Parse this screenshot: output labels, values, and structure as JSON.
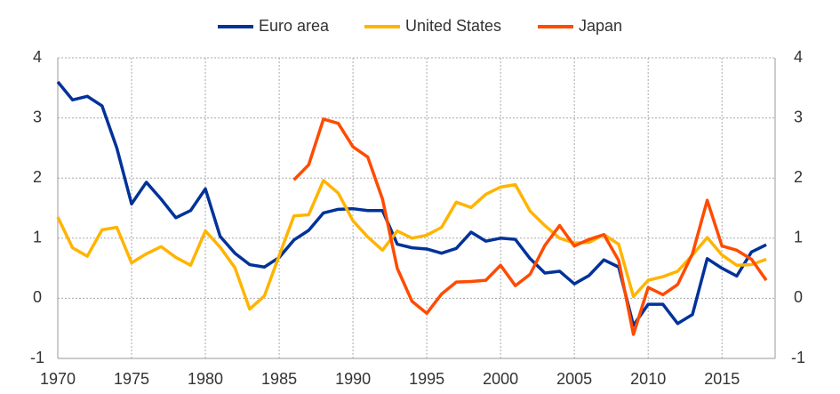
{
  "chart_data": {
    "type": "line",
    "x": [
      1970,
      1971,
      1972,
      1973,
      1974,
      1975,
      1976,
      1977,
      1978,
      1979,
      1980,
      1981,
      1982,
      1983,
      1984,
      1985,
      1986,
      1987,
      1988,
      1989,
      1990,
      1991,
      1992,
      1993,
      1994,
      1995,
      1996,
      1997,
      1998,
      1999,
      2000,
      2001,
      2002,
      2003,
      2004,
      2005,
      2006,
      2007,
      2008,
      2009,
      2010,
      2011,
      2012,
      2013,
      2014,
      2015,
      2016,
      2017,
      2018
    ],
    "series": [
      {
        "name": "Euro area",
        "color": "#003299",
        "values": [
          3.6,
          3.3,
          3.36,
          3.2,
          2.5,
          1.57,
          1.93,
          1.65,
          1.34,
          1.46,
          1.82,
          1.03,
          0.75,
          0.56,
          0.52,
          0.68,
          0.97,
          1.13,
          1.42,
          1.48,
          1.49,
          1.46,
          1.46,
          0.9,
          0.84,
          0.82,
          0.75,
          0.83,
          1.1,
          0.95,
          1.0,
          0.98,
          0.66,
          0.42,
          0.45,
          0.24,
          0.38,
          0.64,
          0.52,
          -0.45,
          -0.1,
          -0.1,
          -0.42,
          -0.27,
          0.66,
          0.5,
          0.37,
          0.77,
          0.89
        ]
      },
      {
        "name": "United States",
        "color": "#ffb400",
        "values": [
          1.35,
          0.84,
          0.7,
          1.14,
          1.18,
          0.59,
          0.74,
          0.86,
          0.68,
          0.55,
          1.12,
          0.85,
          0.51,
          -0.18,
          0.04,
          0.71,
          1.37,
          1.39,
          1.96,
          1.75,
          1.29,
          1.02,
          0.8,
          1.12,
          1.0,
          1.05,
          1.18,
          1.6,
          1.51,
          1.73,
          1.85,
          1.89,
          1.45,
          1.21,
          1.0,
          0.92,
          0.93,
          1.06,
          0.9,
          0.03,
          0.3,
          0.36,
          0.45,
          0.72,
          1.01,
          0.72,
          0.55,
          0.56,
          0.65
        ]
      },
      {
        "name": "Japan",
        "color": "#ff4b00",
        "values": [
          null,
          null,
          null,
          null,
          null,
          null,
          null,
          null,
          null,
          null,
          null,
          null,
          null,
          null,
          null,
          null,
          1.97,
          2.22,
          2.98,
          2.91,
          2.52,
          2.35,
          1.65,
          0.5,
          -0.05,
          -0.25,
          0.07,
          0.27,
          0.28,
          0.3,
          0.55,
          0.21,
          0.4,
          0.88,
          1.21,
          0.87,
          0.98,
          1.06,
          0.63,
          -0.6,
          0.18,
          0.06,
          0.23,
          0.74,
          1.63,
          0.87,
          0.8,
          0.65,
          0.3
        ]
      }
    ],
    "xlim": [
      1970,
      2018.6
    ],
    "xticks": [
      1970,
      1975,
      1980,
      1985,
      1990,
      1995,
      2000,
      2005,
      2010,
      2015
    ],
    "ylim": [
      -1,
      4
    ],
    "yticks": [
      -1,
      0,
      1,
      2,
      3,
      4
    ],
    "y2lim": [
      -1,
      4
    ],
    "y2ticks": [
      -1,
      0,
      1,
      2,
      3,
      4
    ],
    "grid": true,
    "legend": "top"
  }
}
